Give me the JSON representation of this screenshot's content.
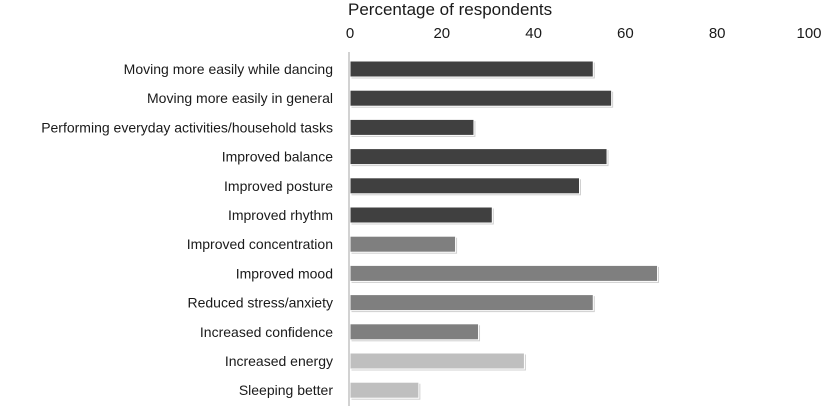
{
  "chart_data": {
    "type": "bar",
    "orientation": "horizontal",
    "title": "",
    "xlabel": "Percentage of respondents",
    "ylabel": "",
    "xlim": [
      0,
      100
    ],
    "x_ticks": [
      0,
      20,
      40,
      60,
      80,
      100
    ],
    "x_axis_position": "top",
    "grid": false,
    "legend": "none",
    "categories": [
      "Moving more easily while dancing",
      "Moving more easily in general",
      "Performing everyday activities/household tasks",
      "Improved balance",
      "Improved posture",
      "Improved rhythm",
      "Improved concentration",
      "Improved mood",
      "Reduced stress/anxiety",
      "Increased confidence",
      "Increased energy",
      "Sleeping better"
    ],
    "values": [
      53,
      57,
      27,
      56,
      50,
      31,
      23,
      67,
      53,
      28,
      38,
      15
    ],
    "bar_colors": [
      "#404040",
      "#404040",
      "#404040",
      "#404040",
      "#404040",
      "#404040",
      "#7f7f7f",
      "#7f7f7f",
      "#7f7f7f",
      "#7f7f7f",
      "#bfbfbf",
      "#bfbfbf"
    ]
  }
}
